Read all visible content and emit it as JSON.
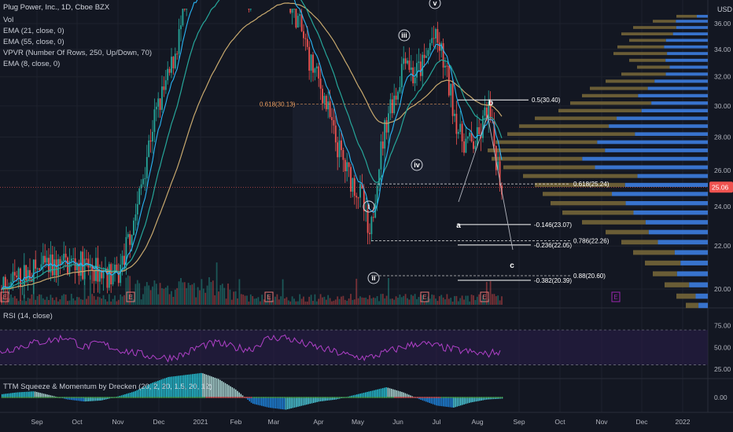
{
  "legends": {
    "symbol": "Plug Power, Inc., 1D, Cboe BZX",
    "vol": "Vol",
    "ema21": "EMA (21, close, 0)",
    "ema55": "EMA (55, close, 0)",
    "vpvr": "VPVR (Number Of Rows, 250, Up/Down, 70)",
    "ema8": "EMA (8, close, 0)",
    "rsi": "RSI (14, close)",
    "ttm": "TTM Squeeze & Momentum by Drecken (20, 2, 20, 1.5, 20, 12)"
  },
  "currency": "USD",
  "colors": {
    "background": "#131722",
    "up": "#26a69a",
    "down": "#ef5350",
    "ema8": "#29b6f6",
    "ema21": "#26a69a",
    "ema55": "#c8a96e",
    "vpvr_up": "#2962ff",
    "vpvr_up_light": "#3d7de0",
    "vpvr_down": "#7a6a3a",
    "rsi": "#b040c8",
    "rsi_band": "#2a1e4a",
    "fib_orange": "#f0a060",
    "last_price": "#ef5350"
  },
  "chart_data": [
    {
      "type": "candlestick",
      "title": "Plug Power, Inc., 1D, Cboe BZX",
      "y_ticks": [
        "36.00",
        "34.00",
        "32.00",
        "30.00",
        "28.00",
        "26.00",
        "24.00",
        "22.00",
        "20.00"
      ],
      "ylim": [
        19.2,
        36.9
      ],
      "y_scale": "log",
      "x_ticks": [
        "Sep",
        "Oct",
        "Nov",
        "Dec",
        "2021",
        "Feb",
        "Mar",
        "Apr",
        "May",
        "Jun",
        "Jul",
        "Aug",
        "Sep",
        "Oct",
        "Nov",
        "Dec",
        "2022"
      ],
      "last_price": "25.06",
      "wave_labels": [
        "i",
        "ii",
        "iii",
        "iv",
        "v",
        "a",
        "b",
        "c"
      ],
      "fib_levels": [
        {
          "label": "0.618(30.13)",
          "value": 30.13,
          "style": "dashed",
          "color": "orange"
        },
        {
          "label": "0.5(30.40)",
          "value": 30.4,
          "style": "solid",
          "color": "white"
        },
        {
          "label": "0.618(25.24)",
          "value": 25.24,
          "style": "dashed",
          "color": "white"
        },
        {
          "label": "-0.146(23.07)",
          "value": 23.07,
          "style": "solid",
          "color": "white"
        },
        {
          "label": "0.786(22.26)",
          "value": 22.26,
          "style": "dashed",
          "color": "white"
        },
        {
          "label": "-0.236(22.05)",
          "value": 22.05,
          "style": "solid",
          "color": "white"
        },
        {
          "label": "0.88(20.60)",
          "value": 20.6,
          "style": "dashed",
          "color": "white"
        },
        {
          "label": "-0.382(20.39)",
          "value": 20.39,
          "style": "solid",
          "color": "white"
        }
      ],
      "earnings_markers": [
        "E",
        "E",
        "E",
        "E",
        "E",
        "E"
      ],
      "candles": [
        {
          "m": "Sep",
          "o": 20.0,
          "c": 20.5
        },
        {
          "m": "Oct",
          "o": 20.5,
          "c": 21.5
        },
        {
          "m": "Nov",
          "o": 21.5,
          "c": 25.5
        },
        {
          "m": "Dec",
          "o": 25.5,
          "c": 34.5
        },
        {
          "m": "2021",
          "o": 34.5,
          "c": 38.0
        },
        {
          "m": "Feb",
          "o": 38.0,
          "c": 40.0
        },
        {
          "m": "Mar",
          "o": 40.0,
          "c": 33.0
        },
        {
          "m": "Apr",
          "o": 33.0,
          "c": 26.0
        },
        {
          "m": "May",
          "o": 26.0,
          "c": 22.0
        },
        {
          "m": "Jun",
          "o": 22.0,
          "c": 33.0
        },
        {
          "m": "Jul",
          "o": 33.0,
          "c": 27.5
        },
        {
          "m": "Aug",
          "o": 27.5,
          "c": 25.06
        }
      ]
    },
    {
      "type": "line",
      "title": "RSI (14, close)",
      "y_ticks": [
        "75.00",
        "50.00",
        "25.00"
      ],
      "ylim": [
        18,
        88
      ],
      "bands": [
        70,
        30
      ],
      "series": [
        {
          "name": "RSI (14, close)",
          "values": [
            45,
            50,
            55,
            58,
            62,
            50,
            55,
            48,
            44,
            40,
            38,
            42,
            52,
            55,
            50,
            48,
            60,
            62,
            55,
            50,
            45,
            40,
            38,
            44,
            50,
            55,
            52,
            48,
            45,
            42,
            46
          ]
        }
      ]
    },
    {
      "type": "bar",
      "title": "TTM Squeeze & Momentum by Drecken (20, 2, 20, 1.5, 20, 12)",
      "y_ticks": [
        "0.00"
      ],
      "values": [
        0.3,
        0.5,
        0.6,
        0.2,
        -0.2,
        -0.4,
        -0.3,
        0.1,
        0.6,
        1.4,
        2.0,
        2.2,
        2.4,
        1.8,
        0.8,
        -0.6,
        -1.0,
        -1.2,
        -0.8,
        -0.4,
        -0.2,
        0.2,
        0.6,
        1.0,
        0.5,
        -0.2,
        -0.8,
        -1.0,
        -0.5,
        -0.2,
        -0.1
      ]
    }
  ]
}
